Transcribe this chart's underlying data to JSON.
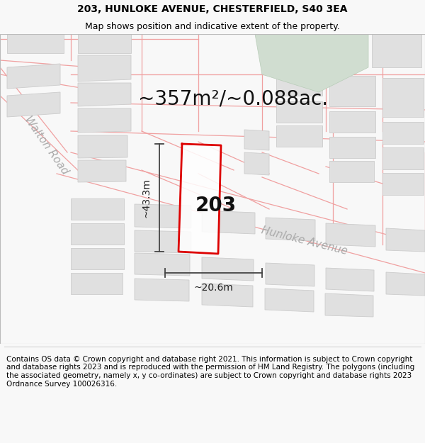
{
  "title_line1": "203, HUNLOKE AVENUE, CHESTERFIELD, S40 3EA",
  "title_line2": "Map shows position and indicative extent of the property.",
  "area_text": "~357m²/~0.088ac.",
  "label_203": "203",
  "dim_width": "~20.6m",
  "dim_height": "~43.3m",
  "street_label": "Hunloke Avenue",
  "road_label": "Walton Road",
  "footer_text": "Contains OS data © Crown copyright and database right 2021. This information is subject to Crown copyright and database rights 2023 and is reproduced with the permission of HM Land Registry. The polygons (including the associated geometry, namely x, y co-ordinates) are subject to Crown copyright and database rights 2023 Ordnance Survey 100026316.",
  "bg_color": "#f8f8f8",
  "map_bg": "#f8f8f8",
  "plot_outline_color": "#dd0000",
  "road_line_color": "#f0a0a0",
  "building_fill": "#e0e0e0",
  "building_stroke": "#cccccc",
  "green_fill": "#d0ddd0",
  "green_stroke": "#b8ccb8",
  "dim_line_color": "#444444",
  "title_color": "#000000",
  "footer_color": "#000000",
  "area_fontsize": 20,
  "title_fontsize": 10,
  "subtitle_fontsize": 9,
  "label_fontsize": 20,
  "dim_fontsize": 10,
  "street_fontsize": 11,
  "footer_fontsize": 7.5
}
